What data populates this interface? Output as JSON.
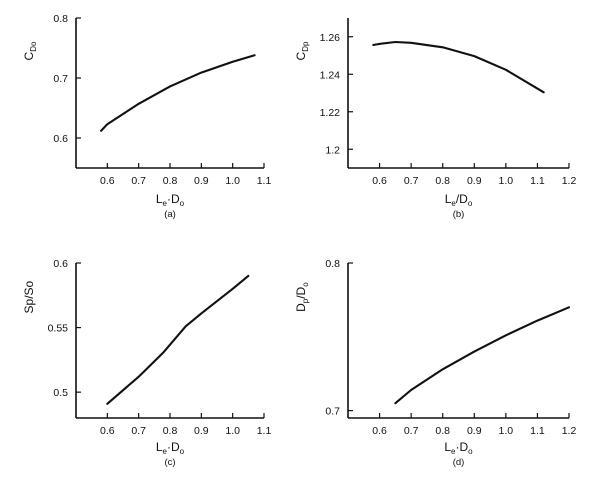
{
  "chart_data": [
    {
      "type": "line",
      "caption": "(a)",
      "xlabel": "Le·Do",
      "ylabel": "CDo",
      "xticks": [
        "0.6",
        "0.7",
        "0.8",
        "0.9",
        "1.0",
        "1.1"
      ],
      "yticks": [
        "0.6",
        "0.7",
        "0.8"
      ],
      "xlim": [
        0.5,
        1.1
      ],
      "ylim": [
        0.55,
        0.8
      ],
      "series": [
        {
          "x": [
            0.58,
            0.6,
            0.7,
            0.8,
            0.9,
            1.0,
            1.07
          ],
          "y": [
            0.612,
            0.623,
            0.657,
            0.686,
            0.709,
            0.727,
            0.738
          ]
        }
      ]
    },
    {
      "type": "line",
      "caption": "(b)",
      "xlabel": "Le/Do",
      "ylabel": "CDp",
      "xticks": [
        "0.6",
        "0.7",
        "0.8",
        "0.9",
        "1.0",
        "1.1",
        "1.2"
      ],
      "yticks": [
        "1.2",
        "1.22",
        "1.24",
        "1.26"
      ],
      "xlim": [
        0.5,
        1.2
      ],
      "ylim": [
        1.19,
        1.27
      ],
      "series": [
        {
          "x": [
            0.58,
            0.6,
            0.65,
            0.7,
            0.8,
            0.9,
            1.0,
            1.12
          ],
          "y": [
            1.2556,
            1.2562,
            1.2572,
            1.2568,
            1.2544,
            1.2497,
            1.2424,
            1.2304
          ]
        }
      ]
    },
    {
      "type": "line",
      "caption": "(c)",
      "xlabel": "Le·Do",
      "ylabel": "Sp/So",
      "xticks": [
        "0.6",
        "0.7",
        "0.8",
        "0.9",
        "1.0",
        "1.1"
      ],
      "yticks": [
        "0.5",
        "0.55",
        "0.6"
      ],
      "xlim": [
        0.5,
        1.1
      ],
      "ylim": [
        0.48,
        0.6
      ],
      "series": [
        {
          "x": [
            0.6,
            0.7,
            0.78,
            0.85,
            0.9,
            1.0,
            1.05
          ],
          "y": [
            0.491,
            0.512,
            0.531,
            0.551,
            0.561,
            0.58,
            0.59
          ]
        }
      ]
    },
    {
      "type": "line",
      "caption": "(d)",
      "xlabel": "Le·Do",
      "ylabel": "Dp/Do",
      "xticks": [
        "0.6",
        "0.7",
        "0.8",
        "0.9",
        "1.0",
        "1.1",
        "1.2"
      ],
      "yticks": [
        "0.7",
        "0.8"
      ],
      "xlim": [
        0.5,
        1.2
      ],
      "ylim": [
        0.695,
        0.8
      ],
      "series": [
        {
          "x": [
            0.65,
            0.7,
            0.8,
            0.9,
            1.0,
            1.1,
            1.2
          ],
          "y": [
            0.705,
            0.714,
            0.728,
            0.74,
            0.751,
            0.761,
            0.77
          ]
        }
      ]
    }
  ]
}
